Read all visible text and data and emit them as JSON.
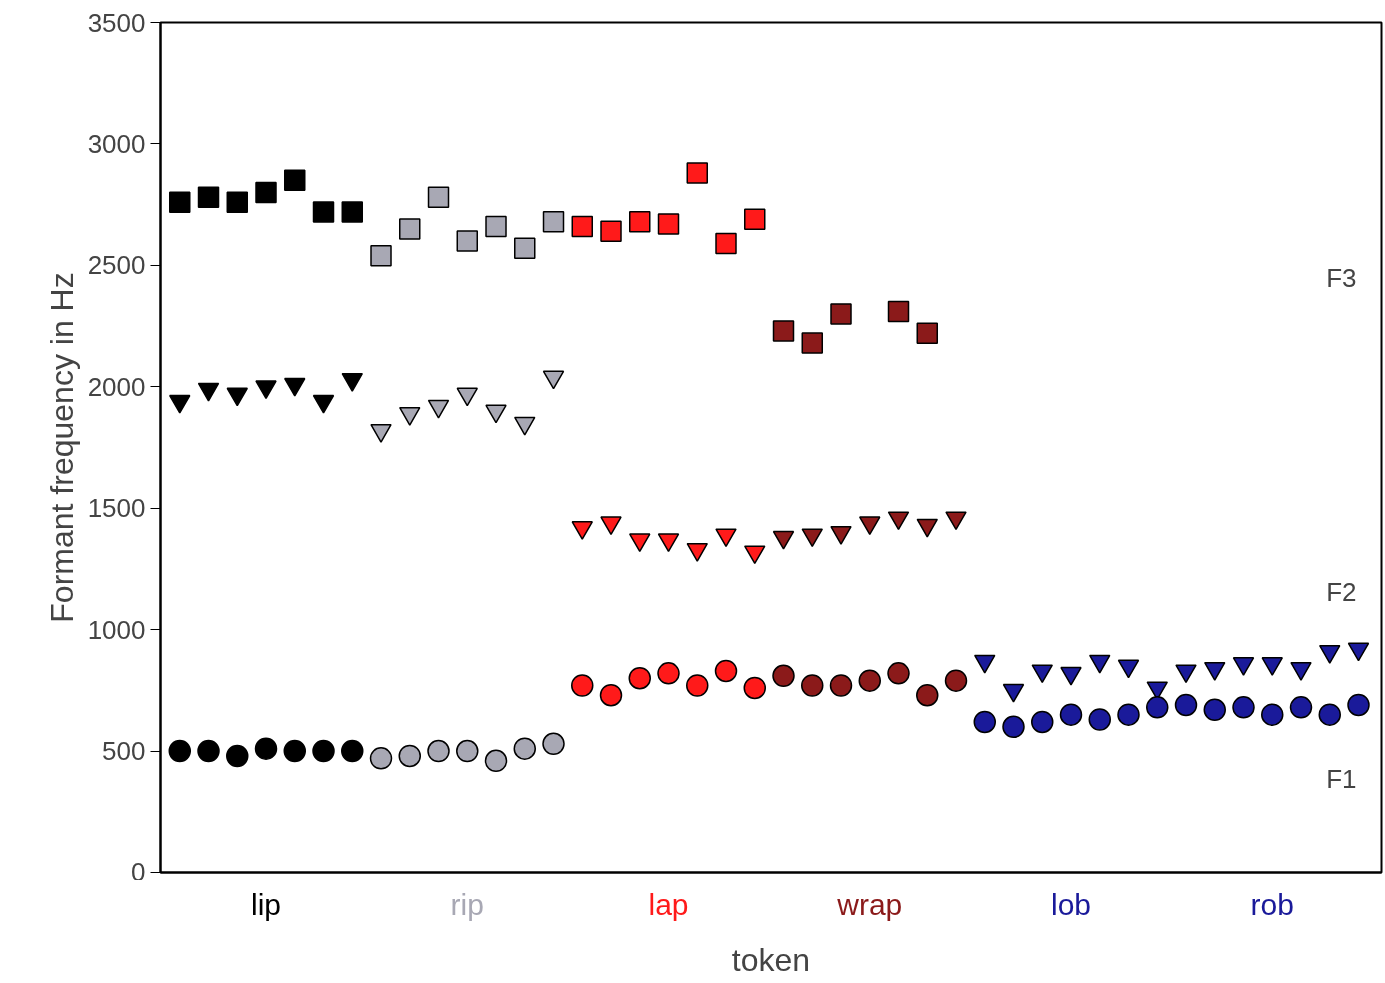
{
  "chart_data": {
    "type": "scatter",
    "xlabel": "token",
    "ylabel": "Formant frequency in Hz",
    "categories": [
      null,
      null,
      null,
      "lip",
      null,
      null,
      null,
      null,
      null,
      null,
      "rip",
      null,
      null,
      null,
      null,
      null,
      null,
      "lap",
      null,
      null,
      null,
      null,
      null,
      null,
      "wrap",
      null,
      null,
      null,
      null,
      null,
      null,
      "lob",
      null,
      null,
      null,
      null,
      null,
      null,
      "rob",
      null,
      null,
      null
    ],
    "ylim": [
      0,
      3500
    ],
    "yticks": [
      0,
      500,
      1000,
      1500,
      2000,
      2500,
      3000,
      3500
    ],
    "grid": false,
    "annotations": [
      "F3",
      "F2",
      "F1"
    ],
    "series": [
      {
        "color": "#000000",
        "marker": "square",
        "values": [
          2760,
          2780,
          2760,
          2800,
          2850,
          2720,
          2720,
          null,
          null,
          null,
          null,
          null,
          null,
          null,
          null,
          null,
          null,
          null,
          null,
          null,
          null,
          null,
          null,
          null,
          null,
          null,
          null,
          null,
          null,
          null,
          null,
          null,
          null,
          null,
          null,
          null,
          null,
          null,
          null,
          null,
          null,
          null
        ]
      },
      {
        "color": "#000000",
        "marker": "triangle",
        "values": [
          1940,
          1990,
          1970,
          2000,
          2010,
          1940,
          2030,
          null,
          null,
          null,
          null,
          null,
          null,
          null,
          null,
          null,
          null,
          null,
          null,
          null,
          null,
          null,
          null,
          null,
          null,
          null,
          null,
          null,
          null,
          null,
          null,
          null,
          null,
          null,
          null,
          null,
          null,
          null,
          null,
          null,
          null,
          null
        ]
      },
      {
        "color": "#000000",
        "marker": "circle",
        "values": [
          500,
          500,
          480,
          510,
          500,
          500,
          500,
          null,
          null,
          null,
          null,
          null,
          null,
          null,
          null,
          null,
          null,
          null,
          null,
          null,
          null,
          null,
          null,
          null,
          null,
          null,
          null,
          null,
          null,
          null,
          null,
          null,
          null,
          null,
          null,
          null,
          null,
          null,
          null,
          null,
          null,
          null
        ]
      },
      {
        "color": "#a8a8b4",
        "marker": "square",
        "values": [
          null,
          null,
          null,
          null,
          null,
          null,
          null,
          2540,
          2650,
          2780,
          2600,
          2660,
          2570,
          2680,
          null,
          null,
          null,
          null,
          null,
          null,
          null,
          null,
          null,
          null,
          null,
          null,
          null,
          null,
          null,
          null,
          null,
          null,
          null,
          null,
          null,
          null,
          null,
          null,
          null,
          null,
          null,
          null
        ]
      },
      {
        "color": "#a8a8b4",
        "marker": "triangle",
        "values": [
          null,
          null,
          null,
          null,
          null,
          null,
          null,
          1820,
          1890,
          1920,
          1970,
          1900,
          1850,
          2040,
          null,
          null,
          null,
          null,
          null,
          null,
          null,
          null,
          null,
          null,
          null,
          null,
          null,
          null,
          null,
          null,
          null,
          null,
          null,
          null,
          null,
          null,
          null,
          null,
          null,
          null,
          null,
          null
        ]
      },
      {
        "color": "#a8a8b4",
        "marker": "circle",
        "values": [
          null,
          null,
          null,
          null,
          null,
          null,
          null,
          470,
          480,
          500,
          500,
          460,
          510,
          530,
          null,
          null,
          null,
          null,
          null,
          null,
          null,
          null,
          null,
          null,
          null,
          null,
          null,
          null,
          null,
          null,
          null,
          null,
          null,
          null,
          null,
          null,
          null,
          null,
          null,
          null,
          null,
          null
        ]
      },
      {
        "color": "#ff1a1a",
        "marker": "square",
        "values": [
          null,
          null,
          null,
          null,
          null,
          null,
          null,
          null,
          null,
          null,
          null,
          null,
          null,
          null,
          2660,
          2640,
          2680,
          2670,
          2880,
          2590,
          2690,
          null,
          null,
          null,
          null,
          null,
          null,
          null,
          null,
          null,
          null,
          null,
          null,
          null,
          null,
          null,
          null,
          null,
          null,
          null,
          null,
          null
        ]
      },
      {
        "color": "#ff1a1a",
        "marker": "triangle",
        "values": [
          null,
          null,
          null,
          null,
          null,
          null,
          null,
          null,
          null,
          null,
          null,
          null,
          null,
          null,
          1420,
          1440,
          1370,
          1370,
          1330,
          1390,
          1320,
          null,
          null,
          null,
          null,
          null,
          null,
          null,
          null,
          null,
          null,
          null,
          null,
          null,
          null,
          null,
          null,
          null,
          null,
          null,
          null,
          null
        ]
      },
      {
        "color": "#ff1a1a",
        "marker": "circle",
        "values": [
          null,
          null,
          null,
          null,
          null,
          null,
          null,
          null,
          null,
          null,
          null,
          null,
          null,
          null,
          770,
          730,
          800,
          820,
          770,
          830,
          760,
          null,
          null,
          null,
          null,
          null,
          null,
          null,
          null,
          null,
          null,
          null,
          null,
          null,
          null,
          null,
          null,
          null,
          null,
          null,
          null,
          null
        ]
      },
      {
        "color": "#8b1a1a",
        "marker": "square",
        "values": [
          null,
          null,
          null,
          null,
          null,
          null,
          null,
          null,
          null,
          null,
          null,
          null,
          null,
          null,
          null,
          null,
          null,
          null,
          null,
          null,
          null,
          2230,
          2180,
          2300,
          null,
          2310,
          2220,
          null,
          null,
          null,
          null,
          null,
          null,
          null,
          null,
          null,
          null,
          null,
          null,
          null,
          null,
          null
        ]
      },
      {
        "color": "#8b1a1a",
        "marker": "triangle",
        "values": [
          null,
          null,
          null,
          null,
          null,
          null,
          null,
          null,
          null,
          null,
          null,
          null,
          null,
          null,
          null,
          null,
          null,
          null,
          null,
          null,
          null,
          1380,
          1390,
          1400,
          1440,
          1460,
          1430,
          1460,
          null,
          null,
          null,
          null,
          null,
          null,
          null,
          null,
          null,
          null,
          null,
          null,
          null,
          null
        ]
      },
      {
        "color": "#8b1a1a",
        "marker": "circle",
        "values": [
          null,
          null,
          null,
          null,
          null,
          null,
          null,
          null,
          null,
          null,
          null,
          null,
          null,
          null,
          null,
          null,
          null,
          null,
          null,
          null,
          null,
          810,
          770,
          770,
          790,
          820,
          730,
          790,
          null,
          null,
          null,
          null,
          null,
          null,
          null,
          null,
          null,
          null,
          null,
          null,
          null,
          null
        ]
      },
      {
        "color": "#1a1a9a",
        "marker": "triangle",
        "values": [
          null,
          null,
          null,
          null,
          null,
          null,
          null,
          null,
          null,
          null,
          null,
          null,
          null,
          null,
          null,
          null,
          null,
          null,
          null,
          null,
          null,
          null,
          null,
          null,
          null,
          null,
          null,
          null,
          870,
          750,
          830,
          820,
          870,
          850,
          760,
          830,
          840,
          860,
          860,
          840,
          910,
          920
        ]
      },
      {
        "color": "#1a1a9a",
        "marker": "circle",
        "values": [
          null,
          null,
          null,
          null,
          null,
          null,
          null,
          null,
          null,
          null,
          null,
          null,
          null,
          null,
          null,
          null,
          null,
          null,
          null,
          null,
          null,
          null,
          null,
          null,
          null,
          null,
          null,
          null,
          620,
          600,
          620,
          650,
          630,
          650,
          680,
          690,
          670,
          680,
          650,
          680,
          650,
          690
        ]
      }
    ]
  }
}
